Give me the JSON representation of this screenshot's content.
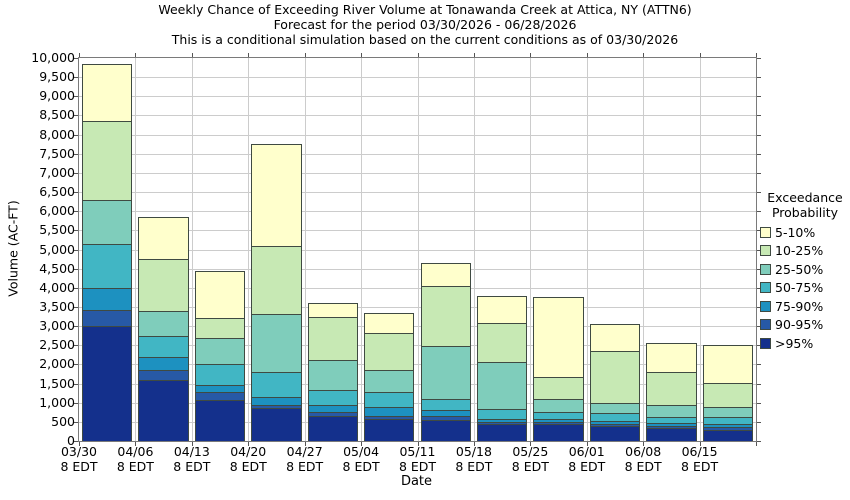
{
  "titles": {
    "line1": "Weekly Chance of Exceeding River Volume at Tonawanda Creek at Attica, NY (ATTN6)",
    "line2": "Forecast for the period 03/30/2026 - 06/28/2026",
    "line3": "This is a conditional simulation based on the current conditions as of 03/30/2026"
  },
  "legend": {
    "title_line1": "Exceedance",
    "title_line2": "Probability",
    "entries": [
      {
        "label": "5-10%",
        "color": "#ffffcc"
      },
      {
        "label": "10-25%",
        "color": "#c7e9b4"
      },
      {
        "label": "25-50%",
        "color": "#7fcdbb"
      },
      {
        "label": "50-75%",
        "color": "#41b6c4"
      },
      {
        "label": "75-90%",
        "color": "#1d91c0"
      },
      {
        "label": "90-95%",
        "color": "#2759a6"
      },
      {
        "label": ">95%",
        "color": "#14308c"
      }
    ]
  },
  "chart_data": {
    "type": "bar",
    "stacked": true,
    "title": "Weekly Chance of Exceeding River Volume at Tonawanda Creek at Attica, NY (ATTN6)",
    "subtitle1": "Forecast for the period 03/30/2026 - 06/28/2026",
    "subtitle2": "This is a conditional simulation based on the current conditions as of 03/30/2026",
    "xlabel": "Date",
    "ylabel": "Volume (AC-FT)",
    "ylim": [
      0,
      10000
    ],
    "grid": true,
    "legend_position": "right",
    "ytick_values": [
      0,
      500,
      1000,
      1500,
      2000,
      2500,
      3000,
      3500,
      4000,
      4500,
      5000,
      5500,
      6000,
      6500,
      7000,
      7500,
      8000,
      8500,
      9000,
      9500,
      10000
    ],
    "ytick_labels": [
      "0",
      "500",
      "1,000",
      "1,500",
      "2,000",
      "2,500",
      "3,000",
      "3,500",
      "4,000",
      "4,500",
      "5,000",
      "5,500",
      "6,000",
      "6,500",
      "7,000",
      "7,500",
      "8,000",
      "8,500",
      "9,000",
      "9,500",
      "10,000"
    ],
    "categories": [
      {
        "date": "03/30",
        "time": "8 EDT"
      },
      {
        "date": "04/06",
        "time": "8 EDT"
      },
      {
        "date": "04/13",
        "time": "8 EDT"
      },
      {
        "date": "04/20",
        "time": "8 EDT"
      },
      {
        "date": "04/27",
        "time": "8 EDT"
      },
      {
        "date": "05/04",
        "time": "8 EDT"
      },
      {
        "date": "05/11",
        "time": "8 EDT"
      },
      {
        "date": "05/18",
        "time": "8 EDT"
      },
      {
        "date": "05/25",
        "time": "8 EDT"
      },
      {
        "date": "06/01",
        "time": "8 EDT"
      },
      {
        "date": "06/08",
        "time": "8 EDT"
      },
      {
        "date": "06/15",
        "time": "8 EDT"
      }
    ],
    "series": [
      {
        "name": ">95%",
        "color": "#14308c",
        "values": [
          3000,
          1600,
          1080,
          870,
          650,
          585,
          550,
          440,
          435,
          385,
          330,
          295
        ]
      },
      {
        "name": "90-95%",
        "color": "#2759a6",
        "values": [
          430,
          250,
          210,
          60,
          110,
          70,
          95,
          55,
          50,
          50,
          60,
          70
        ]
      },
      {
        "name": "75-90%",
        "color": "#1d91c0",
        "values": [
          570,
          350,
          160,
          220,
          190,
          245,
          175,
          70,
          80,
          85,
          70,
          70
        ]
      },
      {
        "name": "50-75%",
        "color": "#41b6c4",
        "values": [
          1150,
          550,
          550,
          650,
          380,
          390,
          280,
          260,
          185,
          205,
          160,
          205
        ]
      },
      {
        "name": "25-50%",
        "color": "#7fcdbb",
        "values": [
          1150,
          650,
          700,
          1520,
          790,
          560,
          1380,
          1235,
          360,
          275,
          330,
          260
        ]
      },
      {
        "name": "10-25%",
        "color": "#c7e9b4",
        "values": [
          2050,
          1350,
          500,
          1780,
          1130,
          960,
          1580,
          1030,
          550,
          1350,
          860,
          610
        ]
      },
      {
        "name": "5-10%",
        "color": "#ffffcc",
        "values": [
          1500,
          1100,
          1250,
          2650,
          350,
          540,
          600,
          685,
          2090,
          710,
          740,
          1000
        ]
      }
    ]
  }
}
